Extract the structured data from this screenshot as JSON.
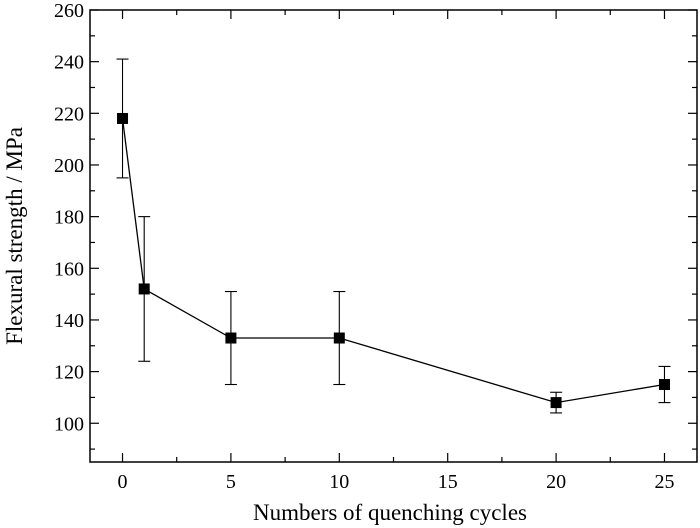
{
  "chart_data": {
    "type": "scatter",
    "xlabel": "Numbers of quenching cycles",
    "ylabel": "Flexural strength / MPa",
    "xlim": [
      -1.5,
      26.5
    ],
    "ylim": [
      85,
      260
    ],
    "xticks": [
      0,
      5,
      10,
      15,
      20,
      25
    ],
    "yticks": [
      100,
      120,
      140,
      160,
      180,
      200,
      220,
      240,
      260
    ],
    "grid": false,
    "series": [
      {
        "x": [
          0,
          1,
          5,
          10,
          20,
          25
        ],
        "y": [
          218,
          152,
          133,
          133,
          108,
          115
        ],
        "error_low": [
          195,
          124,
          115,
          115,
          104,
          108
        ],
        "error_high": [
          241,
          180,
          151,
          151,
          112,
          122
        ],
        "marker": "square",
        "line": true,
        "color": "#000000"
      }
    ]
  }
}
